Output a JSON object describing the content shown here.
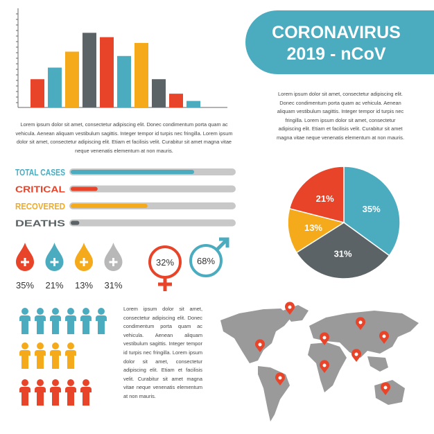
{
  "header": {
    "title_line1": "CORONAVIRUS",
    "title_line2": "2019 - nCoV"
  },
  "texts": [
    "Lorem ipsum dolor sit amet, consectetur adipiscing elit. Donec condimentum porta quam ac vehicula. Aenean aliquam vestibulum sagittis. Integer tempor id turpis nec fringilla. Lorem ipsum dolor sit amet, consectetur adipiscing elit. Etiam et facilisis velit. Curabitur sit amet magna vitae neque venenatis elementum at non mauris.",
    "Lorem ipsum dolor sit amet, consectetur adipiscing elit. Donec condimentum porta quam ac vehicula. Aenean aliquam vestibulum sagittis. Integer tempor id turpis nec fringilla. Lorem ipsum dolor sit amet, consectetur adipiscing elit. Etiam et facilisis velit. Curabitur sit amet magna vitae neque venenatis elementum at non mauris.",
    "Lorem ipsum dolor sit amet, consectetur adipiscing elit. Donec condimentum porta quam ac vehicula. Aenean aliquam vestibulum sagittis. Integer tempor id turpis nec fringilla. Lorem ipsum dolor sit amet, consectetur adipiscing elit. Etiam et facilisis velit. Curabitur sit amet magna vitae neque venenatis elementum at non mauris."
  ],
  "drops": [
    "35%",
    "21%",
    "13%",
    "31%"
  ],
  "gender": {
    "female": "32%",
    "male": "68%"
  },
  "chart_data": [
    {
      "type": "bar",
      "categories": [
        null,
        null,
        null,
        null,
        null,
        null,
        null,
        null,
        null,
        null
      ],
      "values": [
        39,
        55,
        77,
        103,
        97,
        71,
        89,
        39,
        19,
        9
      ],
      "ylim": [
        0,
        110
      ],
      "colors": [
        "#e8442a",
        "#4bacc0",
        "#f5aa1c",
        "#5b6366",
        "#e8442a",
        "#4bacc0",
        "#f5aa1c",
        "#5b6366",
        "#e8442a",
        "#4bacc0"
      ]
    },
    {
      "type": "pie",
      "values": [
        35,
        31,
        13,
        21
      ],
      "value_labels": [
        "35%",
        "31%",
        "13%",
        "21%"
      ],
      "colors": [
        "#4bacc0",
        "#5b6366",
        "#f5aa1c",
        "#e8442a"
      ]
    },
    {
      "type": "progress",
      "categories": [
        "TOTAL CASES",
        "CRITICAL",
        "RECOVERED",
        "DEATHS"
      ],
      "values": [
        75,
        17,
        47,
        6
      ],
      "xlim": [
        0,
        100
      ],
      "colors": [
        "#4bacc0",
        "#e8442a",
        "#f5aa1c",
        "#5b6366"
      ]
    }
  ]
}
